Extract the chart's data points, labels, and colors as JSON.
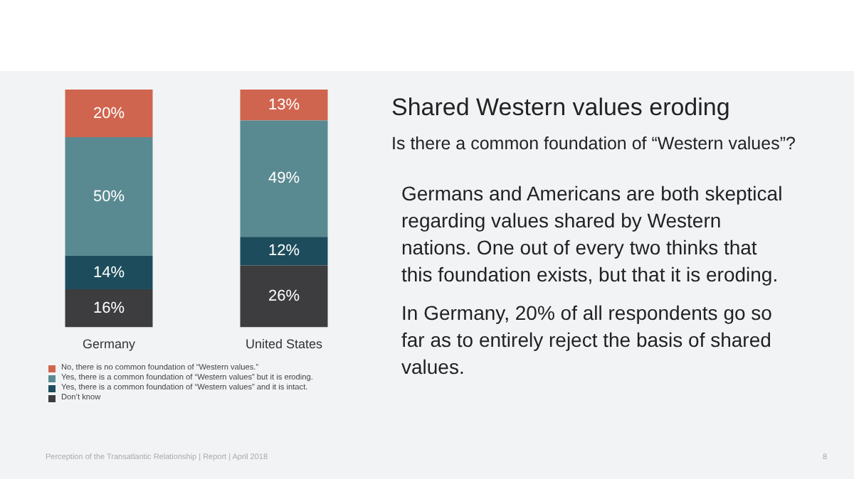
{
  "chart_data": {
    "type": "bar",
    "title": "Shared Western values eroding",
    "subtitle": "Is there a common foundation of “Western values”?",
    "categories": [
      "Germany",
      "United States"
    ],
    "stacked": true,
    "legend": "bottom",
    "grid": false,
    "tick_labels": "x",
    "series": [
      {
        "name": "Don’t know",
        "color": "#3d3c3f",
        "values": [
          16,
          26
        ],
        "value_labels": [
          "16%",
          "26%"
        ]
      },
      {
        "name": "Yes, there is a common foundation of “Western values” and it is intact.",
        "color": "#1d4d5c",
        "values": [
          14,
          12
        ],
        "value_labels": [
          "14%",
          "12%"
        ]
      },
      {
        "name": "Yes, there is a common foundation of “Western values” but it is eroding.",
        "color": "#5a8a91",
        "values": [
          50,
          49
        ],
        "value_labels": [
          "50%",
          "49%"
        ]
      },
      {
        "name": "No, there is no common foundation of “Western values.”",
        "color": "#d0654f",
        "values": [
          20,
          13
        ],
        "value_labels": [
          "20%",
          "13%"
        ]
      }
    ],
    "annotations": [
      "Germans and Americans are both skeptical regarding values shared by Western nations. One out of every two thinks that this foundation exists, but that it is eroding.",
      "In Germany, 20% of all respondents go so far as to entirely reject the basis of shared values.",
      "Perception of the Transatlantic Relationship | Report | April 2018",
      "8"
    ]
  }
}
